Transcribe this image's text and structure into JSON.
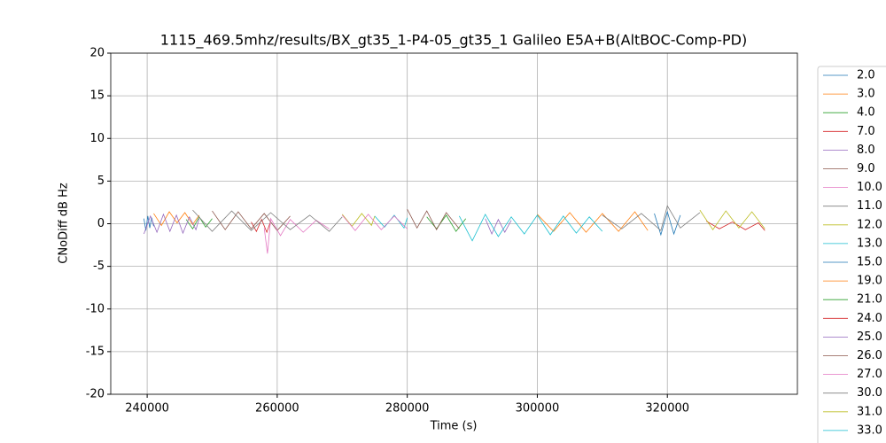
{
  "chart_data": {
    "type": "line",
    "title": "1115_469.5mhz/results/BX_gt35_1-P4-05_gt35_1 Galileo E5A+B(AltBOC-Comp-PD)",
    "xlabel": "Time (s)",
    "ylabel": "CNoDiff dB Hz",
    "xlim": [
      234400,
      340000
    ],
    "ylim": [
      -20,
      20
    ],
    "xticks": [
      240000,
      260000,
      280000,
      300000,
      320000
    ],
    "yticks": [
      -20,
      -15,
      -10,
      -5,
      0,
      5,
      10,
      15,
      20
    ],
    "grid": true,
    "series": [
      {
        "name": "2.0",
        "color": "#1f77b4",
        "x": [
          239500,
          239800,
          240100,
          240400,
          240700,
          241000
        ],
        "values": [
          0.6,
          -0.8,
          0.9,
          -0.5,
          0.7,
          -0.3
        ]
      },
      {
        "name": "3.0",
        "color": "#ff7f0e",
        "x": [
          241000,
          242200,
          243400,
          244600,
          245800,
          247000,
          248000
        ],
        "values": [
          1.2,
          -0.2,
          1.4,
          0.1,
          1.3,
          -0.1,
          1.0
        ]
      },
      {
        "name": "4.0",
        "color": "#2ca02c",
        "x": [
          246000,
          247000,
          248000,
          249000,
          250000
        ],
        "values": [
          0.5,
          -0.6,
          0.8,
          -0.4,
          0.6
        ]
      },
      {
        "name": "7.0",
        "color": "#d62728",
        "x": [
          256000,
          256800,
          257600,
          258400,
          259000
        ],
        "values": [
          0.2,
          -0.9,
          0.5,
          -1.0,
          0.3
        ]
      },
      {
        "name": "8.0",
        "color": "#9467bd",
        "x": [
          239500,
          240500,
          241500,
          242500,
          243500,
          244500,
          245500,
          246500,
          247500,
          248000
        ],
        "values": [
          -1.2,
          0.9,
          -1.0,
          1.1,
          -0.9,
          1.0,
          -1.1,
          0.8,
          -0.7,
          0.6
        ]
      },
      {
        "name": "9.0",
        "color": "#8c564b",
        "x": [
          250000,
          252000,
          254000,
          256000,
          258000,
          260000,
          262000
        ],
        "values": [
          1.5,
          -0.7,
          1.4,
          -0.6,
          1.2,
          -0.8,
          0.9
        ]
      },
      {
        "name": "10.0",
        "color": "#e377c2",
        "x": [
          258000,
          258500,
          259000,
          260500,
          262000,
          264000,
          266000,
          268000
        ],
        "values": [
          -0.5,
          -3.5,
          0.6,
          -1.4,
          0.5,
          -1.0,
          0.4,
          -0.6
        ]
      },
      {
        "name": "11.0",
        "color": "#7f7f7f",
        "x": [
          247000,
          250000,
          253000,
          256000,
          259000,
          262000,
          265000,
          268000,
          270000
        ],
        "values": [
          1.6,
          -0.9,
          1.5,
          -0.8,
          1.3,
          -0.7,
          1.0,
          -0.9,
          0.8
        ]
      },
      {
        "name": "12.0",
        "color": "#bcbd22",
        "x": [
          270000,
          271500,
          273000,
          274500,
          275000
        ],
        "values": [
          1.1,
          -0.3,
          1.2,
          -0.2,
          0.9
        ]
      },
      {
        "name": "13.0",
        "color": "#17becf",
        "x": [
          275000,
          276500,
          278000,
          279500,
          280000
        ],
        "values": [
          0.9,
          -0.4,
          1.0,
          -0.5,
          0.7
        ]
      },
      {
        "name": "15.0",
        "color": "#1f77b4",
        "x": [
          318000,
          319000,
          320000,
          321000,
          322000
        ],
        "values": [
          1.2,
          -1.3,
          1.4,
          -1.2,
          1.0
        ]
      },
      {
        "name": "19.0",
        "color": "#ff7f0e",
        "x": [
          300000,
          302500,
          305000,
          307500,
          310000,
          312500,
          315000,
          317000
        ],
        "values": [
          1.1,
          -0.9,
          1.3,
          -1.0,
          1.2,
          -0.9,
          1.4,
          -0.8
        ]
      },
      {
        "name": "21.0",
        "color": "#2ca02c",
        "x": [
          283000,
          284500,
          286000,
          287500,
          289000
        ],
        "values": [
          0.8,
          -0.6,
          1.0,
          -0.9,
          0.6
        ]
      },
      {
        "name": "24.0",
        "color": "#d62728",
        "x": [
          326000,
          328000,
          330000,
          332000,
          334000,
          335000
        ],
        "values": [
          0.3,
          -0.6,
          0.2,
          -0.7,
          0.1,
          -0.8
        ]
      },
      {
        "name": "25.0",
        "color": "#9467bd",
        "x": [
          292000,
          293000,
          294000,
          295000,
          296000
        ],
        "values": [
          0.6,
          -1.2,
          0.5,
          -1.0,
          0.4
        ]
      },
      {
        "name": "26.0",
        "color": "#8c564b",
        "x": [
          280000,
          281500,
          283000,
          284500,
          286000,
          288000
        ],
        "values": [
          1.7,
          -0.5,
          1.5,
          -0.7,
          1.3,
          -0.6
        ]
      },
      {
        "name": "27.0",
        "color": "#e377c2",
        "x": [
          270000,
          272000,
          274000,
          276000,
          278000,
          280000
        ],
        "values": [
          1.0,
          -0.8,
          1.1,
          -0.7,
          0.9,
          -0.6
        ]
      },
      {
        "name": "30.0",
        "color": "#7f7f7f",
        "x": [
          310000,
          313000,
          316000,
          319000,
          320000,
          322000,
          325000
        ],
        "values": [
          1.0,
          -0.6,
          1.2,
          -0.8,
          2.1,
          -0.5,
          1.3
        ]
      },
      {
        "name": "31.0",
        "color": "#bcbd22",
        "x": [
          325000,
          327000,
          329000,
          331000,
          333000,
          335000
        ],
        "values": [
          1.6,
          -0.7,
          1.5,
          -0.5,
          1.4,
          -0.6
        ]
      },
      {
        "name": "33.0",
        "color": "#17becf",
        "x": [
          288000,
          290000,
          292000,
          294000,
          296000,
          298000,
          300000,
          302000,
          304000,
          306000,
          308000,
          310000
        ],
        "values": [
          0.9,
          -2.0,
          1.1,
          -1.5,
          0.8,
          -1.2,
          1.0,
          -1.3,
          0.9,
          -1.1,
          0.8,
          -0.9
        ]
      }
    ]
  }
}
